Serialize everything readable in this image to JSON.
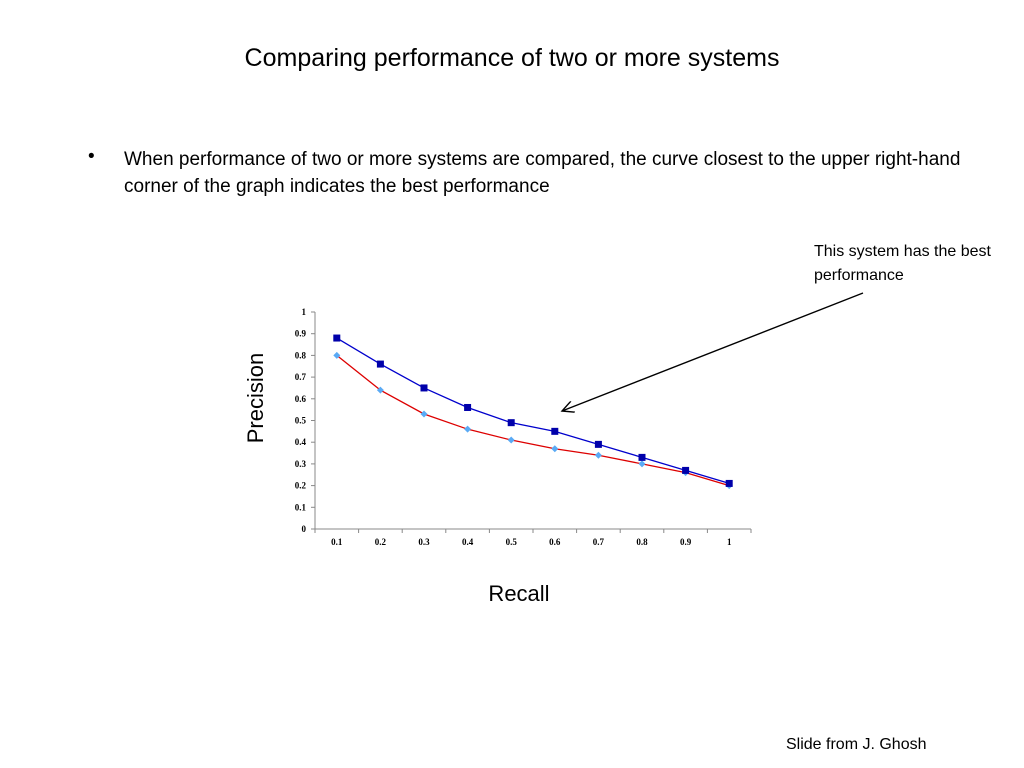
{
  "slide": {
    "title": "Comparing performance of two or more systems",
    "bullet_symbol": "•",
    "bullet_text": "When performance of two or more systems are compared, the curve closest to the upper right-hand corner of the graph indicates the best performance",
    "callout": "This system has the best performance",
    "footer": "Slide from J. Ghosh"
  },
  "chart_data": {
    "type": "line",
    "xlabel": "Recall",
    "ylabel": "Precision",
    "categories": [
      "0.1",
      "0.2",
      "0.3",
      "0.4",
      "0.5",
      "0.6",
      "0.7",
      "0.8",
      "0.9",
      "1"
    ],
    "y_ticks": [
      "0",
      "0.1",
      "0.2",
      "0.3",
      "0.4",
      "0.5",
      "0.6",
      "0.7",
      "0.8",
      "0.9",
      "1"
    ],
    "ylim": [
      0,
      1
    ],
    "grid": false,
    "legend": "none",
    "series": [
      {
        "values": [
          0.88,
          0.76,
          0.65,
          0.56,
          0.49,
          0.45,
          0.39,
          0.33,
          0.27,
          0.21
        ],
        "color": "#0000cc",
        "marker": "square",
        "marker_color": "#0000aa"
      },
      {
        "values": [
          0.8,
          0.64,
          0.53,
          0.46,
          0.41,
          0.37,
          0.34,
          0.3,
          0.26,
          0.2
        ],
        "color": "#dd0000",
        "marker": "diamond",
        "marker_color": "#5aaaf5"
      }
    ]
  }
}
